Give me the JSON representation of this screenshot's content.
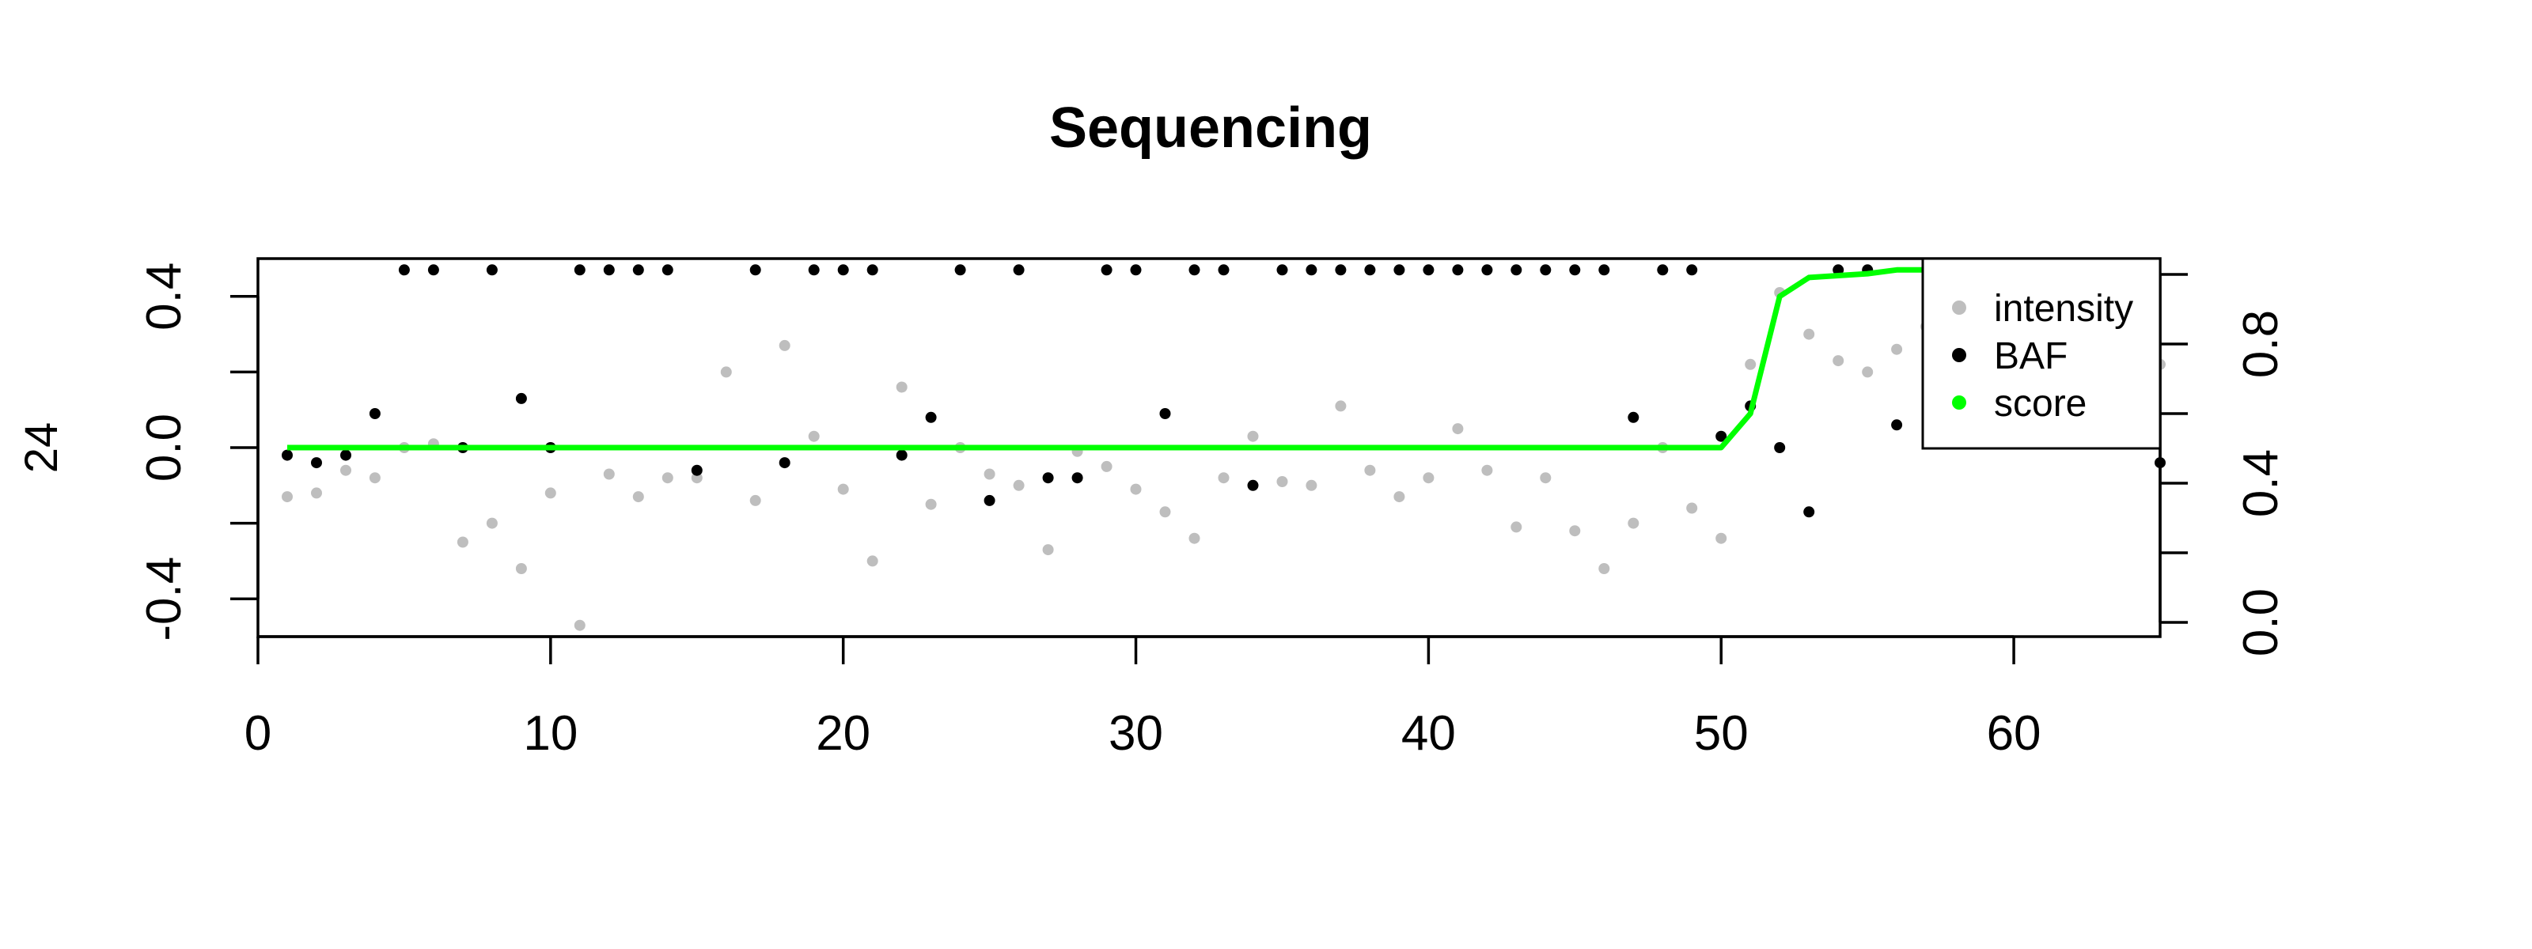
{
  "chart_data": {
    "type": "scatter",
    "title": "Sequencing",
    "ylabel": "24",
    "xlim": [
      0,
      65
    ],
    "ylim_left": [
      -0.5,
      0.5
    ],
    "ylim_right": [
      0,
      1
    ],
    "x_ticks": [
      0,
      10,
      20,
      30,
      40,
      50,
      60
    ],
    "y_ticks_left": [
      -0.4,
      0.0,
      0.4
    ],
    "y_ticks_left_minor": [
      -0.2,
      0.2
    ],
    "y_ticks_right": [
      0.0,
      0.4,
      0.8
    ],
    "y_ticks_right_minor": [
      0.2,
      0.6,
      1.0
    ],
    "legend_position": "top-right",
    "colors": {
      "intensity": "#bebebe",
      "BAF": "#000000",
      "score": "#00ff00"
    },
    "series": [
      {
        "name": "intensity",
        "axis": "left",
        "style": "points",
        "x": [
          1,
          2,
          3,
          4,
          5,
          6,
          7,
          8,
          9,
          10,
          11,
          12,
          13,
          14,
          15,
          16,
          17,
          18,
          19,
          20,
          21,
          22,
          23,
          24,
          25,
          26,
          27,
          28,
          29,
          30,
          31,
          32,
          33,
          34,
          35,
          36,
          37,
          38,
          39,
          40,
          41,
          42,
          43,
          44,
          45,
          46,
          47,
          48,
          49,
          50,
          51,
          52,
          53,
          54,
          55,
          56,
          57,
          58,
          59,
          60,
          61,
          62,
          63,
          64,
          65
        ],
        "y": [
          -0.13,
          -0.12,
          -0.06,
          -0.08,
          0.0,
          0.01,
          -0.25,
          -0.2,
          -0.32,
          -0.12,
          -0.47,
          -0.07,
          -0.13,
          -0.08,
          -0.08,
          0.2,
          -0.14,
          0.27,
          0.03,
          -0.11,
          -0.3,
          0.16,
          -0.15,
          0.0,
          -0.07,
          -0.1,
          -0.27,
          -0.01,
          -0.05,
          -0.11,
          -0.17,
          -0.24,
          -0.08,
          0.03,
          -0.09,
          -0.1,
          0.11,
          -0.06,
          -0.13,
          -0.08,
          0.05,
          -0.06,
          -0.21,
          -0.08,
          -0.22,
          -0.32,
          -0.2,
          0.0,
          -0.16,
          -0.24,
          0.22,
          0.41,
          0.3,
          0.23,
          0.2,
          0.26,
          0.32,
          0.18,
          0.15,
          0.25,
          0.19,
          0.12,
          0.28,
          0.21,
          0.22
        ]
      },
      {
        "name": "BAF",
        "axis": "left",
        "style": "points",
        "x": [
          1,
          2,
          3,
          4,
          5,
          6,
          7,
          8,
          9,
          10,
          11,
          12,
          13,
          14,
          15,
          17,
          18,
          19,
          20,
          21,
          22,
          23,
          24,
          25,
          26,
          27,
          28,
          29,
          30,
          31,
          32,
          33,
          34,
          35,
          36,
          37,
          38,
          39,
          40,
          41,
          42,
          43,
          44,
          45,
          46,
          47,
          48,
          49,
          50,
          51,
          52,
          53,
          54,
          55,
          56,
          65
        ],
        "y": [
          -0.02,
          -0.04,
          -0.02,
          0.09,
          0.47,
          0.47,
          0.0,
          0.47,
          0.13,
          0.0,
          0.47,
          0.47,
          0.47,
          0.47,
          -0.06,
          0.47,
          -0.04,
          0.47,
          0.47,
          0.47,
          -0.02,
          0.08,
          0.47,
          -0.14,
          0.47,
          -0.08,
          -0.08,
          0.47,
          0.47,
          0.09,
          0.47,
          0.47,
          -0.1,
          0.47,
          0.47,
          0.47,
          0.47,
          0.47,
          0.47,
          0.47,
          0.47,
          0.47,
          0.47,
          0.47,
          0.47,
          0.08,
          0.47,
          0.47,
          0.03,
          0.11,
          0.0,
          -0.17,
          0.47,
          0.47,
          0.06,
          -0.04
        ]
      },
      {
        "name": "score",
        "axis": "left",
        "style": "line",
        "x": [
          1,
          50,
          51,
          52,
          53,
          54,
          55,
          56,
          57,
          58,
          59,
          60,
          61,
          62,
          63,
          64,
          65
        ],
        "y": [
          0.0,
          0.0,
          0.09,
          0.4,
          0.45,
          0.455,
          0.46,
          0.47,
          0.47,
          0.47,
          0.47,
          0.47,
          0.47,
          0.47,
          0.47,
          0.47,
          0.47
        ]
      }
    ]
  }
}
